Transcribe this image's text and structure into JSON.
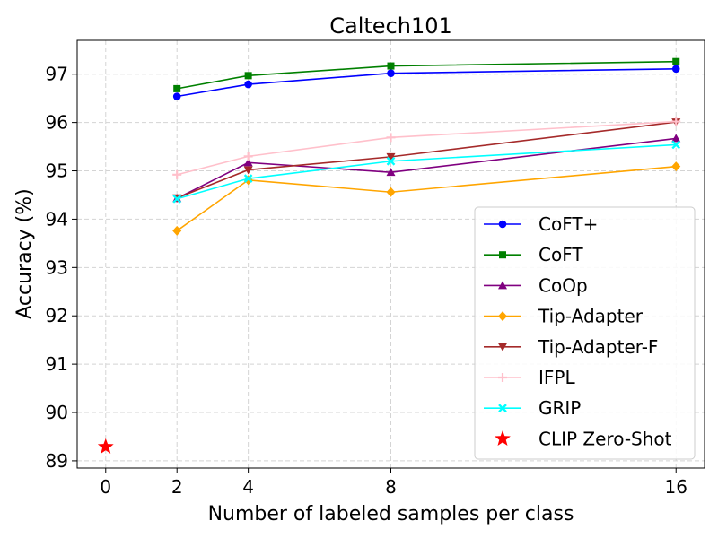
{
  "chart_data": {
    "type": "line",
    "title": "Caltech101",
    "xlabel": "Number of labeled samples per class",
    "ylabel": "Accuracy (%)",
    "x_ticks": [
      0,
      2,
      4,
      8,
      16
    ],
    "y_ticks": [
      89,
      90,
      91,
      92,
      93,
      94,
      95,
      96,
      97
    ],
    "xlim": [
      -0.8,
      16.8
    ],
    "ylim": [
      88.85,
      97.7
    ],
    "grid": true,
    "legend_position": "lower-right",
    "series": [
      {
        "name": "CoFT+",
        "color": "#0000ff",
        "marker": "circle",
        "x": [
          2,
          4,
          8,
          16
        ],
        "values": [
          96.54,
          96.79,
          97.02,
          97.11
        ]
      },
      {
        "name": "CoFT",
        "color": "#008000",
        "marker": "square",
        "x": [
          2,
          4,
          8,
          16
        ],
        "values": [
          96.7,
          96.97,
          97.17,
          97.26
        ]
      },
      {
        "name": "CoOp",
        "color": "#800080",
        "marker": "triangle-up",
        "x": [
          2,
          4,
          8,
          16
        ],
        "values": [
          94.43,
          95.17,
          94.97,
          95.67
        ]
      },
      {
        "name": "Tip-Adapter",
        "color": "#ffa500",
        "marker": "diamond",
        "x": [
          2,
          4,
          8,
          16
        ],
        "values": [
          93.76,
          94.81,
          94.56,
          95.09
        ]
      },
      {
        "name": "Tip-Adapter-F",
        "color": "#a52a2a",
        "marker": "triangle-down",
        "x": [
          2,
          4,
          8,
          16
        ],
        "values": [
          94.44,
          95.02,
          95.29,
          96.01
        ]
      },
      {
        "name": "IFPL",
        "color": "#ffc0cb",
        "marker": "plus",
        "x": [
          2,
          4,
          8,
          16
        ],
        "values": [
          94.92,
          95.3,
          95.69,
          96.02
        ]
      },
      {
        "name": "GRIP",
        "color": "#00ffff",
        "marker": "x",
        "x": [
          2,
          4,
          8,
          16
        ],
        "values": [
          94.42,
          94.84,
          95.2,
          95.54
        ]
      },
      {
        "name": "CLIP Zero-Shot",
        "color": "#ff0000",
        "marker": "star",
        "x": [
          0
        ],
        "values": [
          89.29
        ],
        "line": false
      }
    ]
  }
}
